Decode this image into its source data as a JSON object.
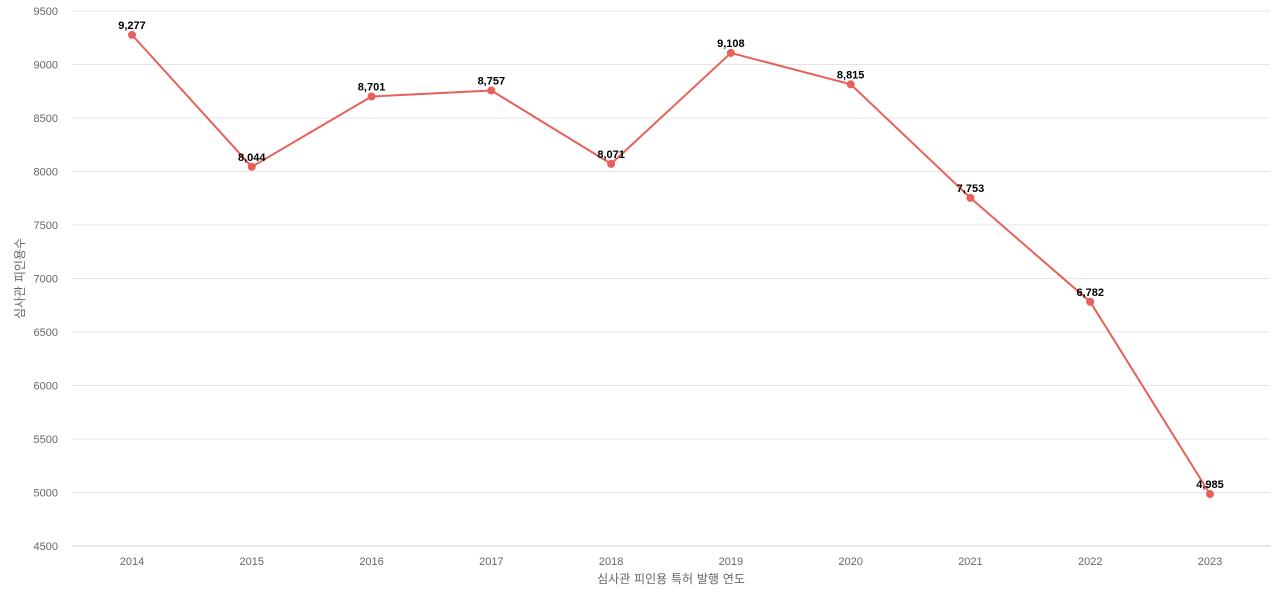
{
  "chart_data": {
    "type": "line",
    "title": "",
    "xlabel": "심사관 피인용 특허 발행 연도",
    "ylabel": "심사관 피인용수",
    "x": [
      "2014",
      "2015",
      "2016",
      "2017",
      "2018",
      "2019",
      "2020",
      "2021",
      "2022",
      "2023"
    ],
    "series": [
      {
        "values": [
          9277,
          8044,
          8701,
          8757,
          8071,
          9108,
          8815,
          7753,
          6782,
          4985
        ],
        "labels": [
          "9,277",
          "8,044",
          "8,701",
          "8,757",
          "8,071",
          "9,108",
          "8,815",
          "7,753",
          "6,782",
          "4,985"
        ],
        "color": "#e8605a"
      }
    ],
    "yticks": [
      "4500",
      "5000",
      "5500",
      "6000",
      "6500",
      "7000",
      "7500",
      "8000",
      "8500",
      "9000",
      "9500"
    ],
    "ylim": [
      4500,
      9500
    ],
    "grid": true,
    "legend": "none"
  }
}
